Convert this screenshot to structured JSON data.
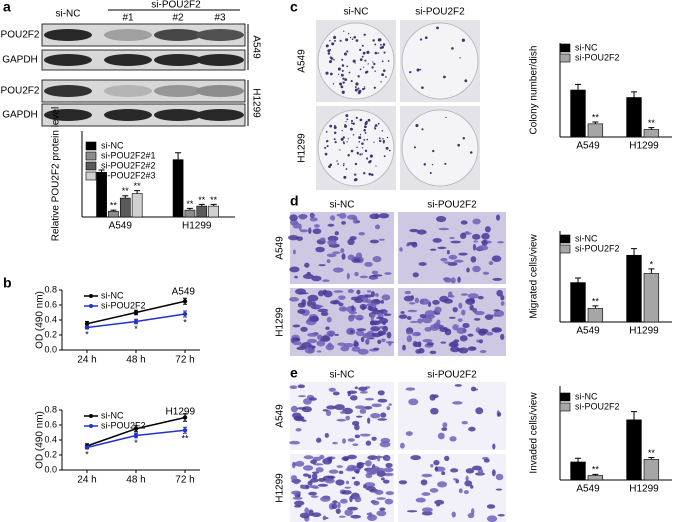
{
  "panel_labels": [
    "a",
    "b",
    "c",
    "d",
    "e"
  ],
  "blot": {
    "header": {
      "control": "si-NC",
      "knockdown": "si-POU2F2",
      "lanes": [
        "#1",
        "#2",
        "#3"
      ]
    },
    "rows": [
      "POU2F2",
      "GAPDH",
      "POU2F2",
      "GAPDH"
    ],
    "cell_lines": [
      "A549",
      "H1299"
    ]
  },
  "images": [
    {
      "columns": [
        "si-NC",
        "si-POU2F2"
      ],
      "rows": [
        "A549",
        "H1299"
      ]
    },
    {
      "columns": [
        "si-NC",
        "si-POU2F2"
      ],
      "rows": [
        "A549",
        "H1299"
      ]
    },
    {
      "columns": [
        "si-NC",
        "si-POU2F2"
      ],
      "rows": [
        "A549",
        "H1299"
      ]
    }
  ],
  "chart_data": [
    {
      "type": "bar",
      "ylabel": "Relative POU2F2 protein level",
      "categories": [
        "A549",
        "H1299"
      ],
      "ylim": [
        0,
        1.5
      ],
      "legend": "upper left",
      "series": [
        {
          "name": "si-NC",
          "color": "#000000",
          "values": [
            0.78,
            1.0
          ],
          "errors": [
            0.04,
            0.12
          ]
        },
        {
          "name": "si-POU2F2#1",
          "color": "#8c8c8c",
          "values": [
            0.1,
            0.12
          ],
          "errors": [
            0.02,
            0.03
          ],
          "annotations": [
            "**",
            "**"
          ]
        },
        {
          "name": "si-POU2F2#2",
          "color": "#5a5a5a",
          "values": [
            0.33,
            0.19
          ],
          "errors": [
            0.04,
            0.03
          ],
          "annotations": [
            "**",
            "**"
          ]
        },
        {
          "name": "si-POU2F2#3",
          "color": "#d0d0d0",
          "values": [
            0.41,
            0.19
          ],
          "errors": [
            0.05,
            0.03
          ],
          "annotations": [
            "**",
            "**"
          ]
        }
      ]
    },
    {
      "type": "line",
      "title": "A549",
      "ylabel": "OD (490 nm)",
      "categories": [
        "24 h",
        "48 h",
        "72 h"
      ],
      "ylim": [
        0,
        0.8
      ],
      "yticks": [
        {
          "value": 0,
          "label": "0.0"
        },
        {
          "value": 0.2,
          "label": "0.2"
        },
        {
          "value": 0.4,
          "label": "0.4"
        },
        {
          "value": 0.6,
          "label": "0.6"
        },
        {
          "value": 0.8,
          "label": "0.8"
        }
      ],
      "legend": "upper left",
      "series": [
        {
          "name": "si-NC",
          "color": "#000000",
          "values": [
            0.35,
            0.5,
            0.65
          ],
          "errors": [
            0.03,
            0.03,
            0.04
          ]
        },
        {
          "name": "si-POU2F2",
          "color": "#2233cc",
          "values": [
            0.3,
            0.38,
            0.48
          ],
          "errors": [
            0.02,
            0.03,
            0.04
          ],
          "annotations": [
            "*",
            "*",
            "*"
          ]
        }
      ]
    },
    {
      "type": "line",
      "title": "H1299",
      "ylabel": "OD (490 nm)",
      "categories": [
        "24 h",
        "48 h",
        "72 h"
      ],
      "ylim": [
        0,
        0.8
      ],
      "yticks": [
        {
          "value": 0,
          "label": "0.0"
        },
        {
          "value": 0.2,
          "label": "0.2"
        },
        {
          "value": 0.4,
          "label": "0.4"
        },
        {
          "value": 0.6,
          "label": "0.6"
        },
        {
          "value": 0.8,
          "label": "0.8"
        }
      ],
      "legend": "upper left",
      "series": [
        {
          "name": "si-NC",
          "color": "#000000",
          "values": [
            0.32,
            0.55,
            0.7
          ],
          "errors": [
            0.03,
            0.04,
            0.05
          ]
        },
        {
          "name": "si-POU2F2",
          "color": "#2233cc",
          "values": [
            0.3,
            0.46,
            0.53
          ],
          "errors": [
            0.02,
            0.03,
            0.04
          ],
          "annotations": [
            "*",
            "*",
            "**"
          ]
        }
      ]
    },
    {
      "type": "bar",
      "ylabel": "Colony number/dish",
      "categories": [
        "A549",
        "H1299"
      ],
      "ylim": [
        0,
        250
      ],
      "legend": "upper left",
      "series": [
        {
          "name": "si-NC",
          "color": "#000000",
          "values": [
            125,
            105
          ],
          "errors": [
            15,
            15
          ]
        },
        {
          "name": "si-POU2F2",
          "color": "#a6a6a6",
          "values": [
            35,
            20
          ],
          "errors": [
            5,
            5
          ],
          "annotations": [
            "**",
            "**"
          ]
        }
      ]
    },
    {
      "type": "bar",
      "ylabel": "Migrated cells/view",
      "categories": [
        "A549",
        "H1299"
      ],
      "ylim": [
        0,
        300
      ],
      "legend": "upper left",
      "series": [
        {
          "name": "si-NC",
          "color": "#000000",
          "values": [
            130,
            220
          ],
          "errors": [
            15,
            22
          ]
        },
        {
          "name": "si-POU2F2",
          "color": "#a6a6a6",
          "values": [
            45,
            160
          ],
          "errors": [
            8,
            15
          ],
          "annotations": [
            "**",
            "*"
          ]
        }
      ]
    },
    {
      "type": "bar",
      "ylabel": "Invaded cells/view",
      "categories": [
        "A549",
        "H1299"
      ],
      "ylim": [
        0,
        250
      ],
      "legend": "upper left",
      "series": [
        {
          "name": "si-NC",
          "color": "#000000",
          "values": [
            48,
            160
          ],
          "errors": [
            10,
            22
          ]
        },
        {
          "name": "si-POU2F2",
          "color": "#a6a6a6",
          "values": [
            12,
            55
          ],
          "errors": [
            3,
            5
          ],
          "annotations": [
            "**",
            "**"
          ]
        }
      ]
    }
  ]
}
